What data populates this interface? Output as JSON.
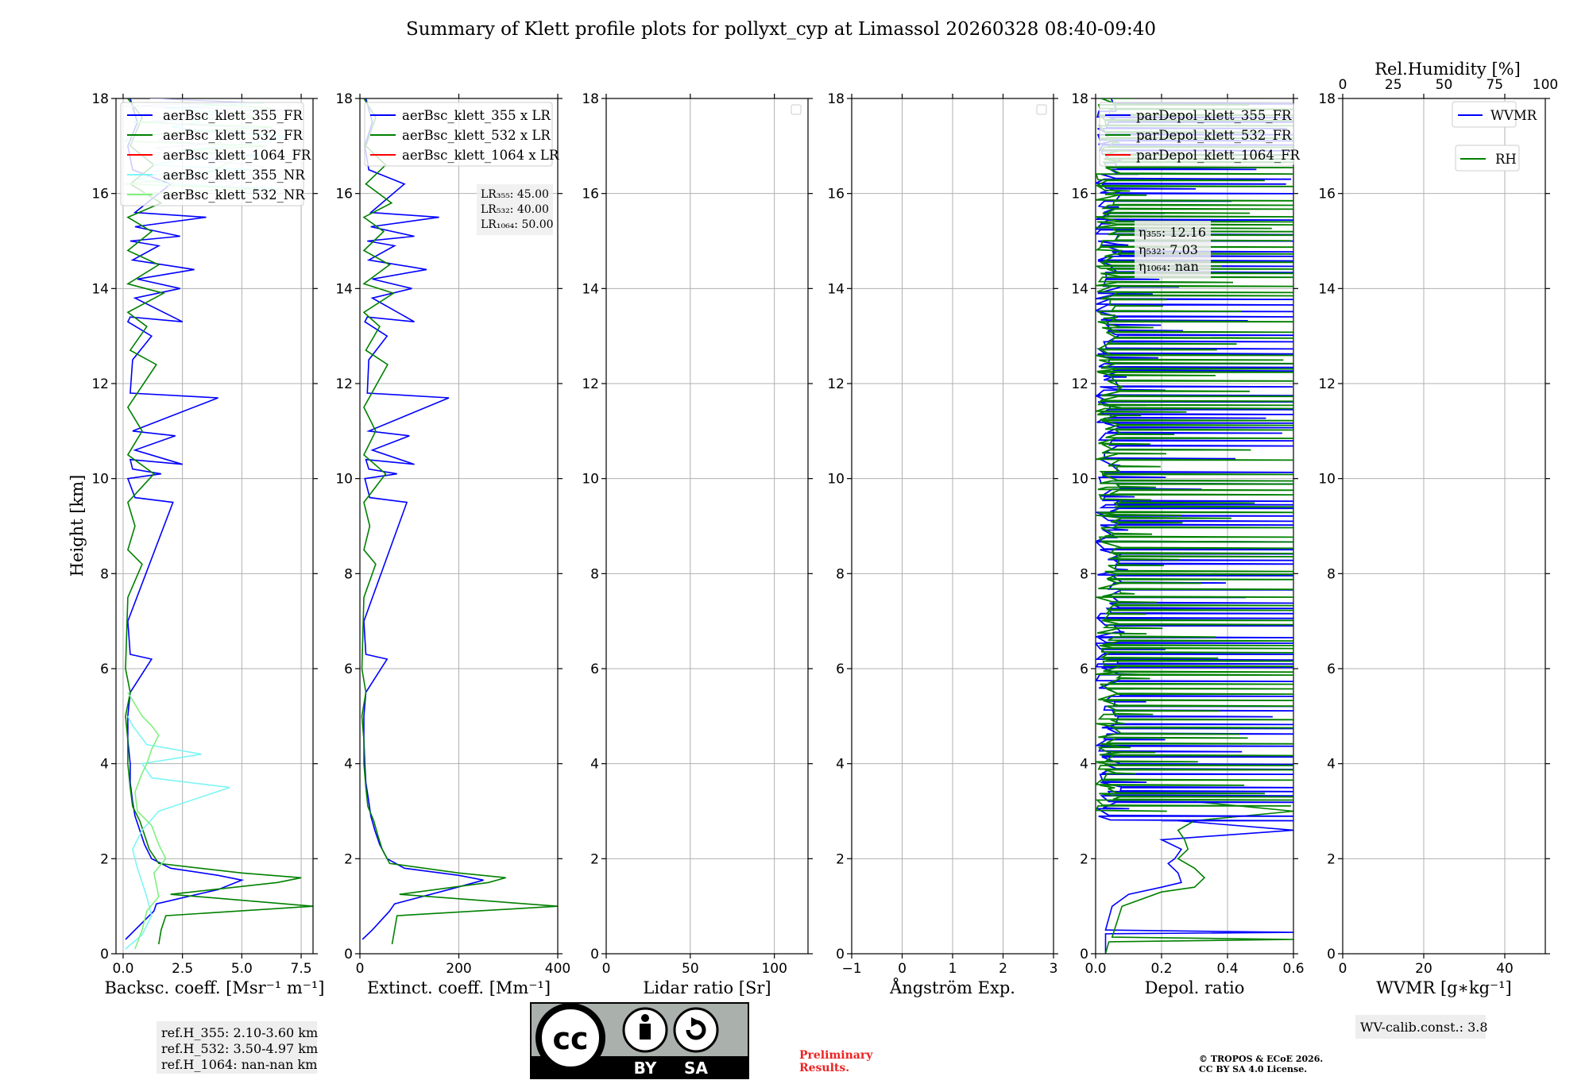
{
  "figure": {
    "title": "Summary of Klett profile plots for pollyxt_cyp at Limassol 20260328 08:40-09:40",
    "ylabel": "Height [km]",
    "ref_heights": [
      "ref.H_355: 2.10-3.60 km",
      "ref.H_532: 3.50-4.97 km",
      "ref.H_1064: nan-nan km"
    ],
    "wv_calib": "WV-calib.const.: 3.8",
    "preliminary": [
      "Preliminary",
      "Results."
    ],
    "copyright": [
      "© TROPOS & ECoE 2026.",
      "CC BY SA 4.0 License."
    ],
    "license_badge": {
      "by": "BY",
      "sa": "SA"
    },
    "colors": {
      "blue": "#0000ff",
      "green": "#008000",
      "red": "#ff0000",
      "cyan": "#7ff5f5",
      "lightgreen": "#80f080",
      "grid": "#b0b0b0"
    }
  },
  "chart_data": [
    {
      "id": "bsc",
      "type": "line",
      "xlabel": "Backsc. coeff. [Msr⁻¹ m⁻¹]",
      "ylabel": "Height [km]",
      "xlim": [
        -0.3,
        8.0
      ],
      "ylim": [
        0,
        18
      ],
      "xticks": [
        0.0,
        2.5,
        5.0,
        7.5
      ],
      "xticklabels": [
        "0.0",
        "2.5",
        "5.0",
        "7.5"
      ],
      "legend": [
        "aerBsc_klett_355_FR",
        "aerBsc_klett_532_FR",
        "aerBsc_klett_1064_FR",
        "aerBsc_klett_355_NR",
        "aerBsc_klett_532_NR"
      ],
      "series": [
        {
          "name": "aerBsc_klett_355_FR",
          "color": "#0000ff",
          "x": [
            0.1,
            0.5,
            1.3,
            1.4,
            4.0,
            5.0,
            4.0,
            2.0,
            1.2,
            0.9,
            0.7,
            0.5,
            0.4,
            0.3,
            0.3,
            0.2,
            0.2,
            0.3,
            1.2,
            0.3,
            0.2,
            2.1,
            0.5,
            0.2,
            1.6,
            0.4,
            0.3,
            2.5,
            0.5,
            2.2,
            0.4,
            4.0,
            0.3,
            0.4,
            1.2,
            0.2,
            0.3,
            2.5,
            0.5,
            2.4,
            0.6,
            3.0,
            0.4,
            1.5,
            0.3,
            2.4,
            0.5,
            3.5,
            0.5,
            2.0,
            0.4,
            0.2,
            0.6,
            0.3
          ],
          "y": [
            0.3,
            0.5,
            0.9,
            1.05,
            1.35,
            1.55,
            1.65,
            1.8,
            2.0,
            2.3,
            2.6,
            2.9,
            3.2,
            3.6,
            4.0,
            4.5,
            5.0,
            5.5,
            6.2,
            6.3,
            7.0,
            9.5,
            9.6,
            10.0,
            10.1,
            10.2,
            10.4,
            10.3,
            10.6,
            10.9,
            11.0,
            11.7,
            11.8,
            12.5,
            13.0,
            13.3,
            13.4,
            13.3,
            13.8,
            14.0,
            14.2,
            14.4,
            14.6,
            14.9,
            15.0,
            15.1,
            15.3,
            15.5,
            15.6,
            16.2,
            16.5,
            17.0,
            17.5,
            18.0
          ]
        },
        {
          "name": "aerBsc_klett_532_FR",
          "color": "#008000",
          "x": [
            1.5,
            1.6,
            1.8,
            8.0,
            2.0,
            6.5,
            7.5,
            5.0,
            1.5,
            1.1,
            0.9,
            0.7,
            0.4,
            0.3,
            0.2,
            0.2,
            0.1,
            0.3,
            0.1,
            0.2,
            0.8,
            0.2,
            0.5,
            0.2,
            1.3,
            0.2,
            0.8,
            0.2,
            1.4,
            0.3,
            1.0,
            0.2,
            1.7,
            0.2,
            1.5,
            0.2,
            1.2,
            0.2,
            1.6,
            0.3,
            1.3,
            0.3,
            0.8,
            0.2
          ],
          "y": [
            0.2,
            0.5,
            0.8,
            1.0,
            1.25,
            1.5,
            1.6,
            1.7,
            1.9,
            2.2,
            2.5,
            2.8,
            3.1,
            3.5,
            4.0,
            4.5,
            5.0,
            5.5,
            6.0,
            7.5,
            8.2,
            8.5,
            9.0,
            9.5,
            10.1,
            10.5,
            11.0,
            11.5,
            12.4,
            12.7,
            13.2,
            13.5,
            13.9,
            14.1,
            14.5,
            14.8,
            15.2,
            15.5,
            15.8,
            16.2,
            16.6,
            17.0,
            17.6,
            18.0
          ]
        },
        {
          "name": "aerBsc_klett_1064_FR",
          "color": "#ff0000",
          "x": [],
          "y": []
        },
        {
          "name": "aerBsc_klett_355_NR",
          "color": "#7ff5f5",
          "x": [
            0.1,
            0.8,
            1.2,
            1.0,
            0.6,
            0.4,
            0.8,
            1.5,
            4.5,
            1.2,
            0.8,
            3.3,
            1.0,
            0.4,
            0.2
          ],
          "y": [
            0.1,
            0.4,
            0.8,
            1.2,
            1.8,
            2.2,
            2.6,
            3.0,
            3.5,
            3.7,
            4.0,
            4.2,
            4.4,
            4.8,
            5.0
          ]
        },
        {
          "name": "aerBsc_klett_532_NR",
          "color": "#80f080",
          "x": [
            0.5,
            0.8,
            1.0,
            1.5,
            1.3,
            1.8,
            1.5,
            1.2,
            0.6,
            0.5,
            0.8,
            1.0,
            1.2,
            1.5,
            1.2,
            0.8,
            0.2
          ],
          "y": [
            0.1,
            0.5,
            0.9,
            1.2,
            1.7,
            2.0,
            2.3,
            2.7,
            3.0,
            3.4,
            3.8,
            4.0,
            4.3,
            4.6,
            4.8,
            5.0,
            5.5
          ]
        }
      ]
    },
    {
      "id": "ext",
      "type": "line",
      "xlabel": "Extinct. coeff. [Mm⁻¹]",
      "xlim": [
        0,
        400
      ],
      "ylim": [
        0,
        18
      ],
      "xticks": [
        0,
        200,
        400
      ],
      "xticklabels": [
        "0",
        "200",
        "400"
      ],
      "legend": [
        "aerBsc_klett_355 x LR",
        "aerBsc_klett_532 x LR",
        "aerBsc_klett_1064 x LR"
      ],
      "lidar_ratios": [
        "LR₃₅₅: 45.00",
        "LR₅₃₂: 40.00",
        "LR₁₀₆₄: 50.00"
      ],
      "series": [
        {
          "name": "aerBsc_klett_355 x LR",
          "color": "#0000ff",
          "x": [
            5,
            25,
            60,
            70,
            180,
            250,
            200,
            90,
            55,
            40,
            30,
            22,
            18,
            12,
            10,
            8,
            8,
            12,
            55,
            12,
            8,
            95,
            20,
            10,
            75,
            18,
            12,
            110,
            25,
            100,
            18,
            180,
            15,
            18,
            55,
            10,
            15,
            110,
            25,
            105,
            25,
            135,
            18,
            70,
            15,
            110,
            22,
            160,
            22,
            90,
            18,
            10,
            25,
            12
          ],
          "y": [
            0.3,
            0.5,
            0.9,
            1.05,
            1.35,
            1.55,
            1.65,
            1.8,
            2.0,
            2.3,
            2.6,
            2.9,
            3.2,
            3.6,
            4.0,
            4.5,
            5.0,
            5.5,
            6.2,
            6.3,
            7.0,
            9.5,
            9.6,
            10.0,
            10.1,
            10.2,
            10.4,
            10.3,
            10.6,
            10.9,
            11.0,
            11.7,
            11.8,
            12.5,
            13.0,
            13.3,
            13.4,
            13.3,
            13.8,
            14.0,
            14.2,
            14.4,
            14.6,
            14.9,
            15.0,
            15.1,
            15.3,
            15.5,
            15.6,
            16.2,
            16.5,
            17.0,
            17.5,
            18.0
          ]
        },
        {
          "name": "aerBsc_klett_532 x LR",
          "color": "#008000",
          "x": [
            65,
            70,
            75,
            400,
            80,
            260,
            295,
            200,
            60,
            45,
            36,
            28,
            16,
            12,
            8,
            8,
            4,
            12,
            4,
            8,
            32,
            8,
            20,
            8,
            52,
            8,
            32,
            8,
            56,
            12,
            40,
            8,
            68,
            8,
            60,
            8,
            48,
            8,
            64,
            12,
            52,
            12,
            32,
            8
          ],
          "y": [
            0.2,
            0.5,
            0.8,
            1.0,
            1.25,
            1.5,
            1.6,
            1.7,
            1.9,
            2.2,
            2.5,
            2.8,
            3.1,
            3.5,
            4.0,
            4.5,
            5.0,
            5.5,
            6.0,
            7.5,
            8.2,
            8.5,
            9.0,
            9.5,
            10.1,
            10.5,
            11.0,
            11.5,
            12.4,
            12.7,
            13.2,
            13.5,
            13.9,
            14.1,
            14.5,
            14.8,
            15.2,
            15.5,
            15.8,
            16.2,
            16.6,
            17.0,
            17.6,
            18.0
          ]
        },
        {
          "name": "aerBsc_klett_1064 x LR",
          "color": "#ff0000",
          "x": [],
          "y": []
        }
      ]
    },
    {
      "id": "lr",
      "type": "line",
      "xlabel": "Lidar ratio [Sr]",
      "xlim": [
        0,
        120
      ],
      "ylim": [
        0,
        18
      ],
      "xticks": [
        0,
        50,
        100
      ],
      "xticklabels": [
        "0",
        "50",
        "100"
      ],
      "series": []
    },
    {
      "id": "ang",
      "type": "line",
      "xlabel": "Ångström Exp.",
      "xlim": [
        -1,
        3
      ],
      "ylim": [
        0,
        18
      ],
      "xticks": [
        -1,
        0,
        1,
        2,
        3
      ],
      "xticklabels": [
        "−1",
        "0",
        "1",
        "2",
        "3"
      ],
      "series": []
    },
    {
      "id": "dep",
      "type": "line",
      "xlabel": "Depol. ratio",
      "xlim": [
        0,
        0.6
      ],
      "ylim": [
        0,
        18
      ],
      "xticks": [
        0.0,
        0.2,
        0.4,
        0.6
      ],
      "xticklabels": [
        "0.0",
        "0.2",
        "0.4",
        "0.6"
      ],
      "legend": [
        "parDepol_klett_355_FR",
        "parDepol_klett_532_FR",
        "parDepol_klett_1064_FR"
      ],
      "eta": [
        "η₃₅₅: 12.16",
        "η₅₃₂: 7.03",
        "η₁₀₆₄: nan"
      ],
      "series": [
        {
          "name": "parDepol_klett_355_FR",
          "color": "#0000ff",
          "x": [
            0.03,
            0.03,
            0.6,
            0.03,
            0.05,
            0.1,
            0.2,
            0.26,
            0.25,
            0.22,
            0.24,
            0.26,
            0.2,
            0.6,
            0.25
          ],
          "y": [
            0.0,
            0.42,
            0.45,
            0.5,
            1.0,
            1.25,
            1.4,
            1.5,
            1.7,
            1.9,
            2.0,
            2.2,
            2.4,
            2.6,
            2.8
          ]
        },
        {
          "name": "parDepol_klett_532_FR",
          "color": "#008000",
          "x": [
            0.03,
            0.04,
            0.6,
            0.05,
            0.08,
            0.2,
            0.3,
            0.33,
            0.3,
            0.25,
            0.28,
            0.27,
            0.25,
            0.3,
            0.6,
            0.3
          ],
          "y": [
            0.0,
            0.25,
            0.3,
            0.35,
            1.0,
            1.3,
            1.4,
            1.6,
            1.8,
            2.0,
            2.2,
            2.4,
            2.6,
            2.8,
            3.0,
            3.2
          ]
        },
        {
          "name": "parDepol_klett_1064_FR",
          "color": "#ff0000",
          "x": [],
          "y": []
        }
      ]
    },
    {
      "id": "wv",
      "type": "line",
      "xlabel": "WVMR [g∗kg⁻¹]",
      "xlim": [
        0,
        50
      ],
      "ylim": [
        0,
        18
      ],
      "xticks": [
        0,
        20,
        40
      ],
      "xticklabels": [
        "0",
        "20",
        "40"
      ],
      "top_xlabel": "Rel.Humidity [%]",
      "top_xlim": [
        0,
        100
      ],
      "top_xticks": [
        0,
        25,
        50,
        75,
        100
      ],
      "top_xticklabels": [
        "0",
        "25",
        "50",
        "75",
        "100"
      ],
      "legend": [
        "WVMR",
        "RH"
      ],
      "series": []
    }
  ],
  "yaxis": {
    "ticks": [
      0,
      2,
      4,
      6,
      8,
      10,
      12,
      14,
      16,
      18
    ],
    "ticklabels": [
      "0",
      "2",
      "4",
      "6",
      "8",
      "10",
      "12",
      "14",
      "16",
      "18"
    ]
  }
}
